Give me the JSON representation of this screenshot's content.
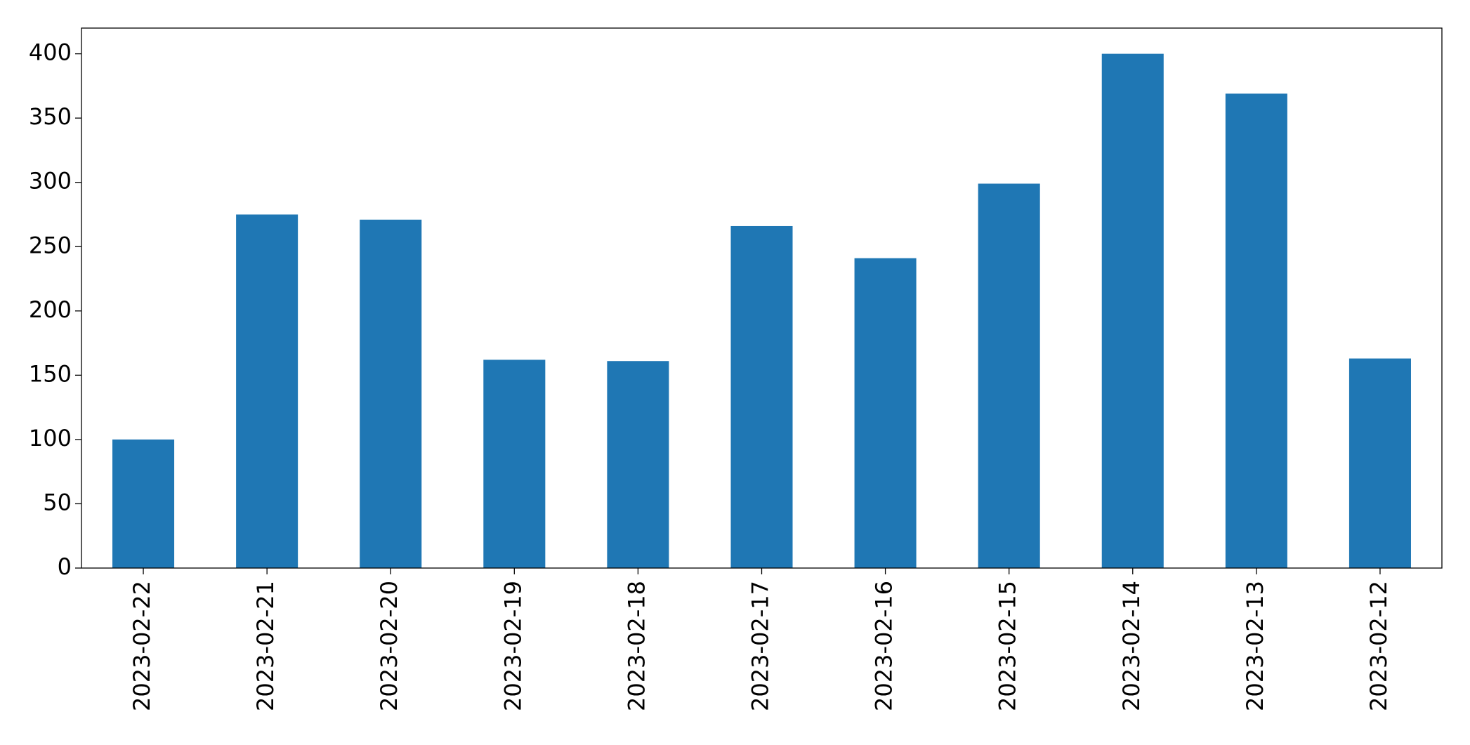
{
  "chart_data": {
    "type": "bar",
    "categories": [
      "2023-02-22",
      "2023-02-21",
      "2023-02-20",
      "2023-02-19",
      "2023-02-18",
      "2023-02-17",
      "2023-02-16",
      "2023-02-15",
      "2023-02-14",
      "2023-02-13",
      "2023-02-12"
    ],
    "values": [
      100,
      275,
      271,
      162,
      161,
      266,
      241,
      299,
      400,
      369,
      163
    ],
    "color": "#1f77b4",
    "ylim": [
      0,
      420
    ],
    "yticks": [
      0,
      50,
      100,
      150,
      200,
      250,
      300,
      350,
      400
    ],
    "grid": false
  }
}
